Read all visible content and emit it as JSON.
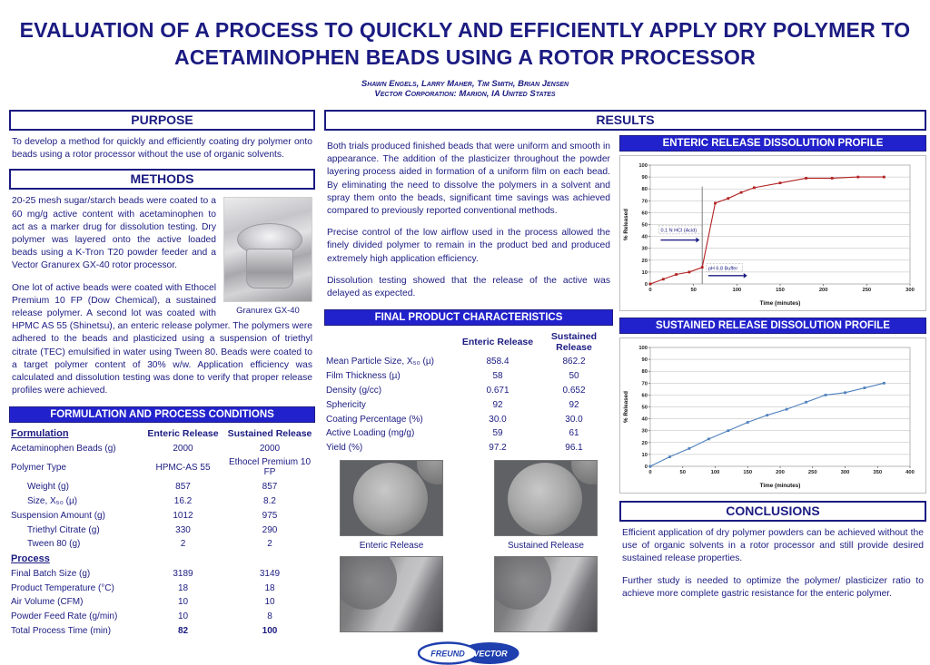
{
  "colors": {
    "navy": "#1b1b82",
    "header_fill_blue": "#2222cc",
    "logo_blue": "#1f3fae",
    "enteric_series_red": "#b22222",
    "sustained_series_blue": "#4f81bd"
  },
  "header": {
    "title_line1": "EVALUATION OF A PROCESS TO QUICKLY AND EFFICIENTLY APPLY DRY POLYMER TO",
    "title_line2": "ACETAMINOPHEN BEADS USING A ROTOR PROCESSOR",
    "authors": "Shawn Engels, Larry Maher, Tim Smith, Brian Jensen",
    "affiliation": "Vector Corporation: Marion, IA United States"
  },
  "purpose": {
    "title": "PURPOSE",
    "body": "To develop a method for quickly and efficiently coating dry polymer onto beads using a rotor processor without the use of organic solvents."
  },
  "methods": {
    "title": "METHODS",
    "paragraphs": [
      "20-25 mesh sugar/starch beads were coated to a 60 mg/g active content with acetaminophen to act as a marker drug for dissolution testing.  Dry polymer was layered onto the active loaded beads using a K-Tron T20 powder feeder and a Vector Granurex GX-40 rotor processor.",
      "One lot of active beads were coated with Ethocel Premium 10 FP (Dow Chemical), a sustained release polymer.  A second lot was coated with HPMC AS 55 (Shinetsu), an enteric release polymer. The polymers were adhered to the beads and plasticized using a suspension of triethyl citrate (TEC) emulsified in water using Tween 80.  Beads were coated to a target polymer content of 30% w/w.  Application efficiency was calculated and dissolution testing was done to verify that proper release profiles were achieved."
    ],
    "image_caption": "Granurex GX-40"
  },
  "formulation_table": {
    "title": "FORMULATION AND PROCESS CONDITIONS",
    "rows": [
      {
        "label": "Formulation",
        "values": [
          "Enteric Release",
          "Sustained Release"
        ],
        "header": true
      },
      {
        "label": "Acetaminophen Beads (g)",
        "values": [
          "2000",
          "2000"
        ]
      },
      {
        "label": "Polymer Type",
        "values": [
          "HPMC-AS 55",
          "Ethocel Premium 10 FP"
        ]
      },
      {
        "label": "Weight (g)",
        "values": [
          "857",
          "857"
        ],
        "indent": true
      },
      {
        "label": "Size, X₅₀ (µ)",
        "values": [
          "16.2",
          "8.2"
        ],
        "indent": true
      },
      {
        "label": "Suspension Amount (g)",
        "values": [
          "1012",
          "975"
        ]
      },
      {
        "label": "Triethyl Citrate (g)",
        "values": [
          "330",
          "290"
        ],
        "indent": true
      },
      {
        "label": "Tween 80 (g)",
        "values": [
          "2",
          "2"
        ],
        "indent": true
      },
      {
        "label": "Process",
        "subheader": true
      },
      {
        "label": "Final Batch Size (g)",
        "values": [
          "3189",
          "3149"
        ]
      },
      {
        "label": "Product Temperature (°C)",
        "values": [
          "18",
          "18"
        ]
      },
      {
        "label": "Air Volume (CFM)",
        "values": [
          "10",
          "10"
        ]
      },
      {
        "label": "Powder Feed Rate (g/min)",
        "values": [
          "10",
          "8"
        ]
      },
      {
        "label": "Total Process Time (min)",
        "values": [
          "82",
          "100"
        ],
        "boldValues": true
      }
    ]
  },
  "results": {
    "title": "RESULTS",
    "paragraphs": [
      "Both trials produced finished beads that were uniform and smooth in appearance.  The addition of the plasticizer throughout the powder layering process aided in formation of a uniform film on each bead.   By eliminating the need to dissolve the polymers in a solvent and spray them onto the beads, significant time savings was achieved compared to previously reported conventional methods.",
      "Precise control of the low airflow used in the process allowed the finely divided polymer to remain in the product bed and produced extremely high application efficiency.",
      "Dissolution testing showed that the release of the active was delayed as expected."
    ]
  },
  "product_table": {
    "title": "FINAL PRODUCT CHARACTERISTICS",
    "rows": [
      {
        "label": "",
        "values": [
          "Enteric Release",
          "Sustained Release"
        ],
        "header": true
      },
      {
        "label": "Mean Particle Size, X₅₀ (µ)",
        "values": [
          "858.4",
          "862.2"
        ]
      },
      {
        "label": "Film Thickness (µ)",
        "values": [
          "58",
          "50"
        ]
      },
      {
        "label": "Density (g/cc)",
        "values": [
          "0.671",
          "0.652"
        ]
      },
      {
        "label": "Sphericity",
        "values": [
          "92",
          "92"
        ]
      },
      {
        "label": "Coating Percentage (%)",
        "values": [
          "30.0",
          "30.0"
        ]
      },
      {
        "label": "Active Loading (mg/g)",
        "values": [
          "59",
          "61"
        ]
      },
      {
        "label": "Yield (%)",
        "values": [
          "97.2",
          "96.1"
        ]
      }
    ]
  },
  "sem": {
    "labels": [
      "Enteric Release",
      "Sustained Release"
    ]
  },
  "chart_data": [
    {
      "type": "line",
      "title": "ENTERIC RELEASE DISSOLUTION PROFILE",
      "xlabel": "Time (minutes)",
      "ylabel": "% Released",
      "xlim": [
        0,
        300
      ],
      "ylim": [
        0,
        100
      ],
      "xticks": [
        0,
        50,
        100,
        150,
        200,
        250,
        300
      ],
      "ytick_step": 10,
      "grid": "horizontal",
      "legend": "none",
      "series": [
        {
          "name": "Enteric Release",
          "color": "#b22222",
          "x": [
            0,
            15,
            30,
            45,
            60,
            75,
            90,
            105,
            120,
            150,
            180,
            210,
            240,
            270
          ],
          "y": [
            0,
            4,
            8,
            10,
            14,
            68,
            72,
            77,
            81,
            85,
            89,
            89,
            90,
            90
          ]
        }
      ],
      "vline": {
        "x": 60,
        "ymax": 82,
        "color": "#808080"
      },
      "annotations": [
        {
          "text": "0.1 N HCl (Acid)",
          "tx": 12,
          "ty": 44,
          "boxed": true,
          "arrow": {
            "x1": 12,
            "x2": 57,
            "y": 37
          }
        },
        {
          "text": "pH 6.8 Buffer",
          "tx": 67,
          "ty": 12,
          "boxed": true,
          "arrow": {
            "x1": 67,
            "x2": 112,
            "y": 7
          }
        }
      ]
    },
    {
      "type": "line",
      "title": "SUSTAINED RELEASE DISSOLUTION PROFILE",
      "xlabel": "Time (minutes)",
      "ylabel": "% Released",
      "xlim": [
        0,
        400
      ],
      "ylim": [
        0,
        100
      ],
      "xticks": [
        0,
        50,
        100,
        150,
        200,
        250,
        300,
        350,
        400
      ],
      "ytick_step": 10,
      "grid": "horizontal",
      "legend": "none",
      "series": [
        {
          "name": "Sustained Release",
          "color": "#4f81bd",
          "x": [
            0,
            30,
            60,
            90,
            120,
            150,
            180,
            210,
            240,
            270,
            300,
            330,
            360
          ],
          "y": [
            0,
            8,
            15,
            23,
            30,
            37,
            43,
            48,
            54,
            60,
            62,
            66,
            70
          ]
        }
      ],
      "annotations": []
    }
  ],
  "conclusions": {
    "title": "CONCLUSIONS",
    "paragraphs": [
      "Efficient application of dry polymer powders can be achieved without the use of organic solvents in a rotor processor and still provide desired sustained release properties.",
      "Further study is needed to optimize the polymer/ plasticizer ratio to achieve more complete gastric resistance for the enteric polymer."
    ]
  },
  "logo": {
    "left": "FREUND",
    "right": "VECTOR"
  }
}
